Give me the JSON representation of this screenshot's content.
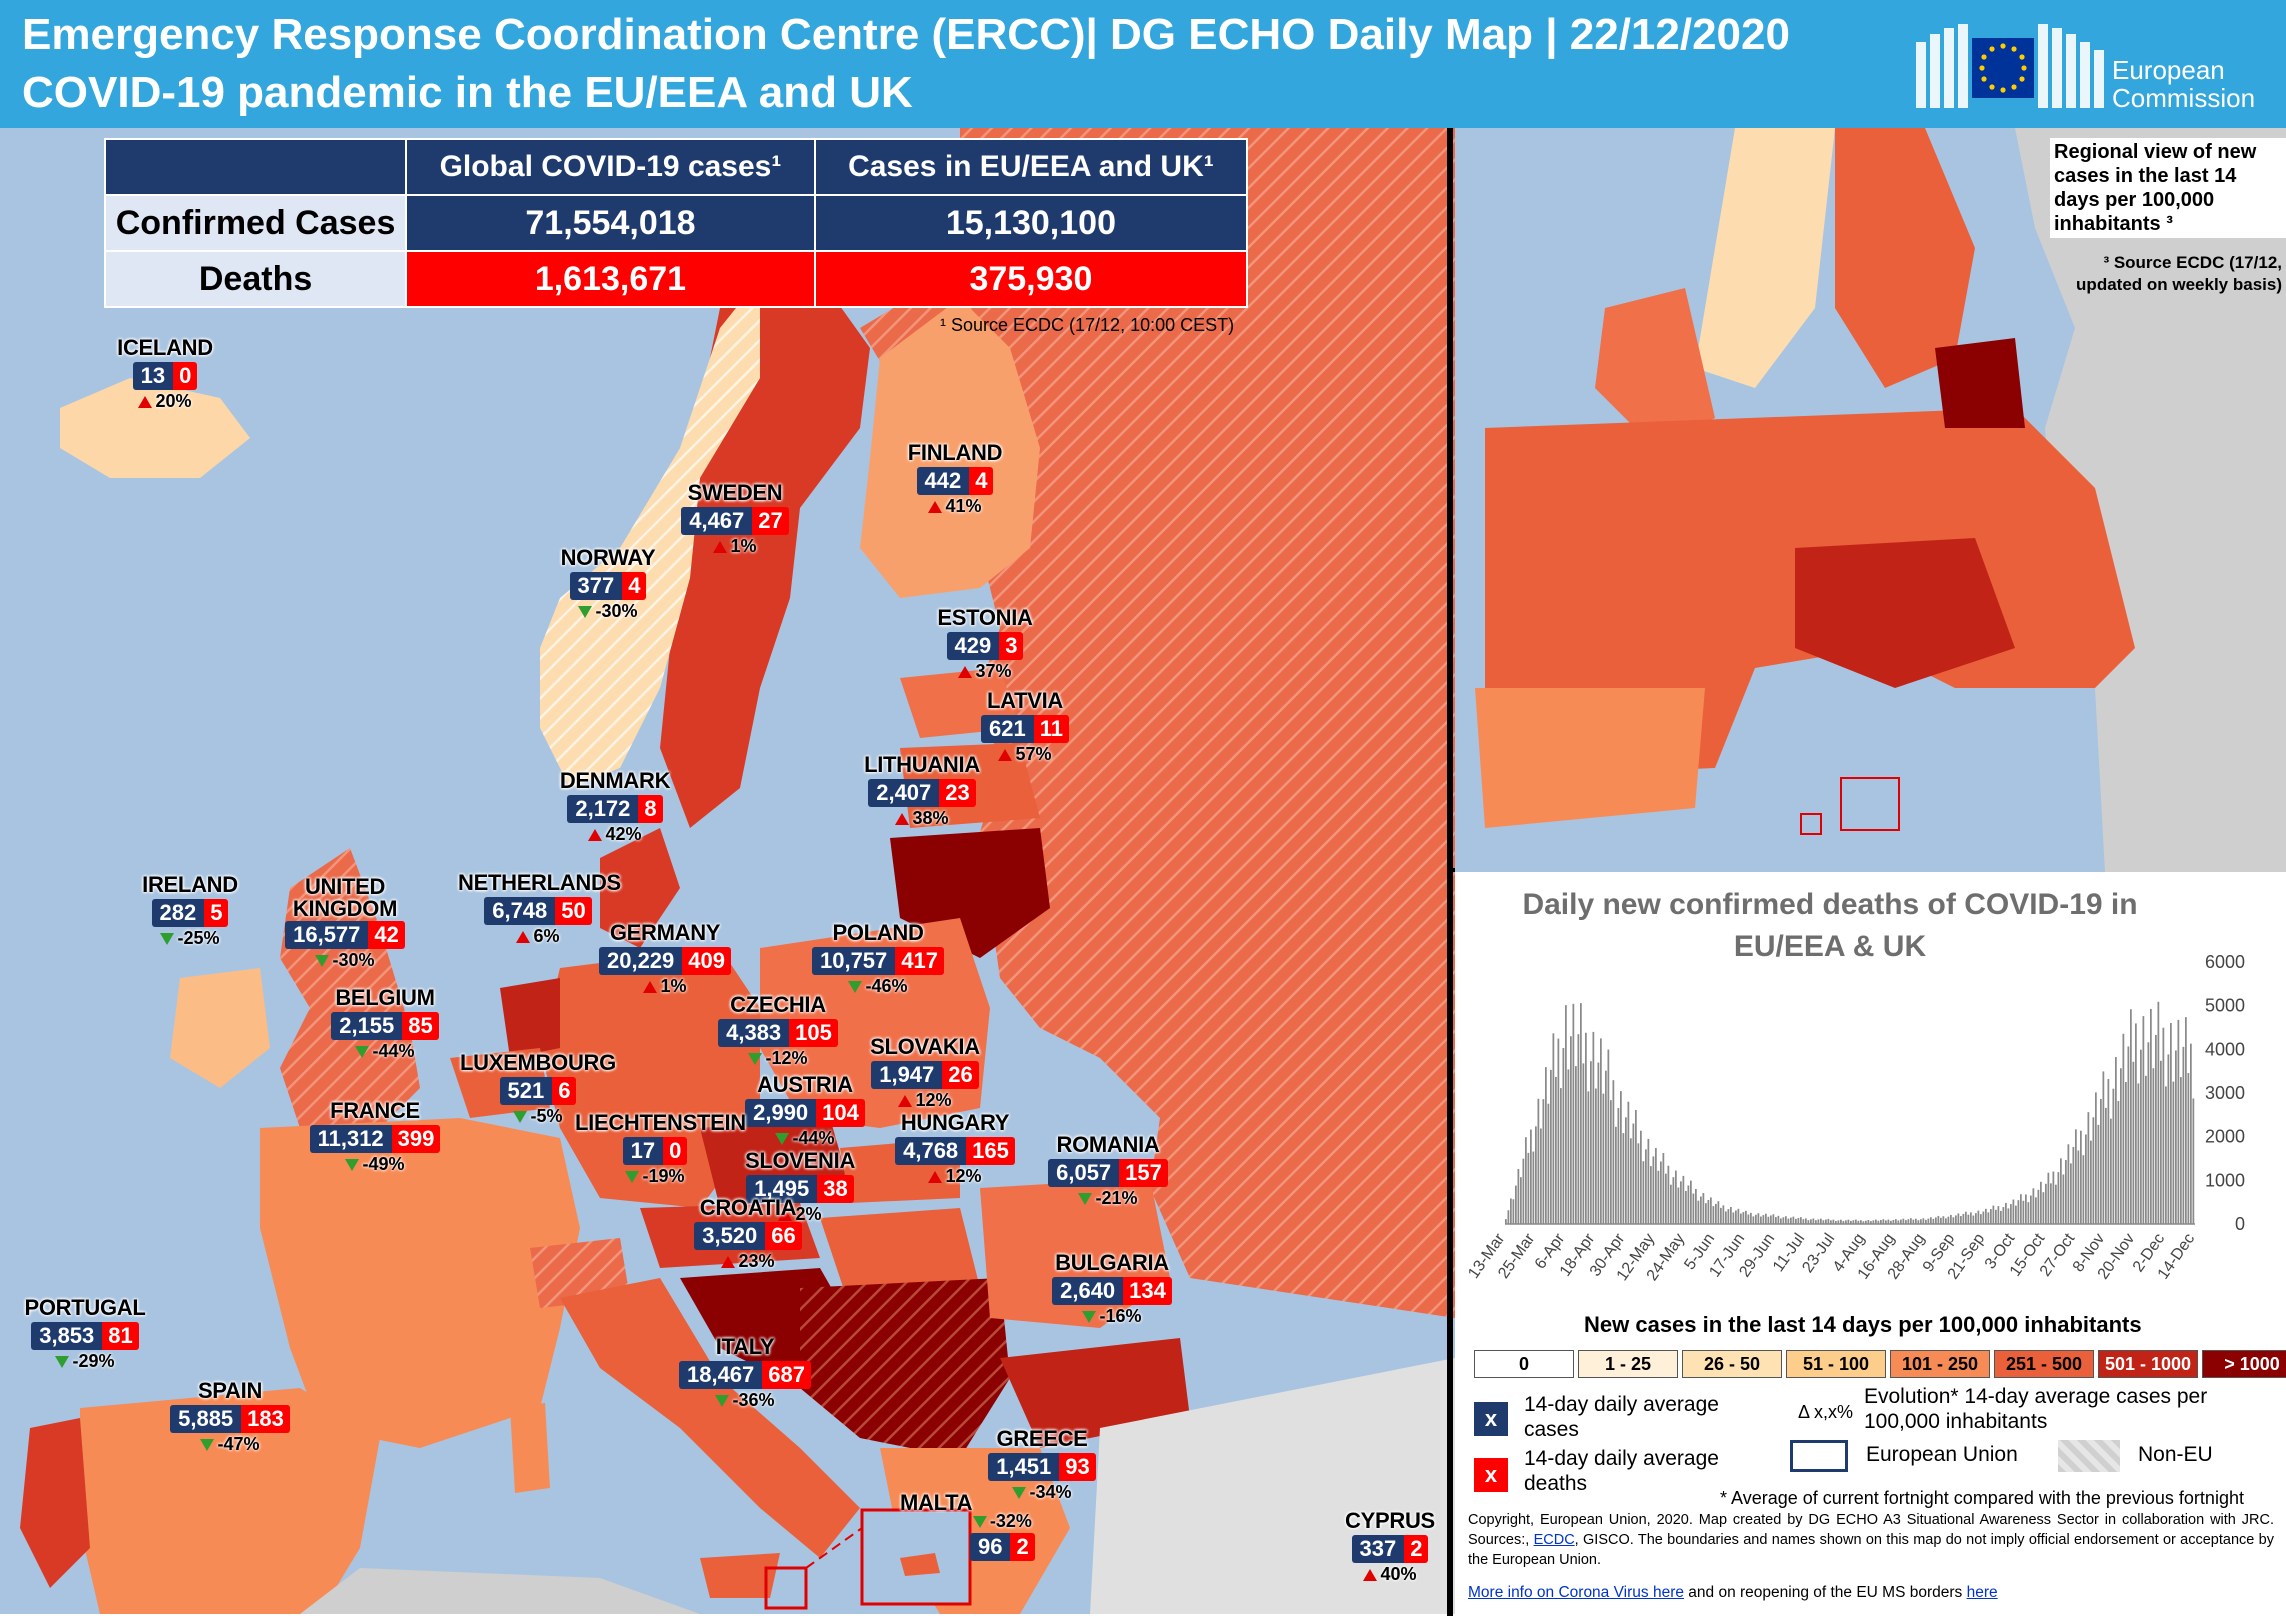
{
  "header": {
    "title_line1": "Emergency Response Coordination Centre (ERCC)| DG ECHO Daily Map | 22/12/2020",
    "title_line2": "COVID-19 pandemic in the EU/EEA and UK",
    "logo_text_line1": "European",
    "logo_text_line2": "Commission"
  },
  "colors": {
    "header_blue": "#33a7dd",
    "sea": "#a9c4e0",
    "case_blue": "#1f3b6e",
    "death_red": "#ff0000",
    "evo_up": "#e00000",
    "evo_down": "#2e9e2e"
  },
  "stats": {
    "col1_header": "Global COVID-19 cases¹",
    "col2_header": "Cases in EU/EEA and UK¹",
    "confirmed_label": "Confirmed Cases",
    "deaths_label": "Deaths",
    "global_confirmed": "71,554,018",
    "eu_confirmed": "15,130,100",
    "global_deaths": "1,613,671",
    "eu_deaths": "375,930",
    "source": "¹ Source ECDC  (17/12, 10:00 CEST)"
  },
  "countries": [
    {
      "name": "ICELAND",
      "cases": "13",
      "deaths": "0",
      "evo": "20%",
      "trend": "up"
    },
    {
      "name": "FINLAND",
      "cases": "442",
      "deaths": "4",
      "evo": "41%",
      "trend": "up"
    },
    {
      "name": "SWEDEN",
      "cases": "4,467",
      "deaths": "27",
      "evo": "1%",
      "trend": "up"
    },
    {
      "name": "NORWAY",
      "cases": "377",
      "deaths": "4",
      "evo": "-30%",
      "trend": "down"
    },
    {
      "name": "ESTONIA",
      "cases": "429",
      "deaths": "3",
      "evo": "37%",
      "trend": "up"
    },
    {
      "name": "LATVIA",
      "cases": "621",
      "deaths": "11",
      "evo": "57%",
      "trend": "up"
    },
    {
      "name": "LITHUANIA",
      "cases": "2,407",
      "deaths": "23",
      "evo": "38%",
      "trend": "up"
    },
    {
      "name": "DENMARK",
      "cases": "2,172",
      "deaths": "8",
      "evo": "42%",
      "trend": "up"
    },
    {
      "name": "IRELAND",
      "cases": "282",
      "deaths": "5",
      "evo": "-25%",
      "trend": "down"
    },
    {
      "name": "UNITED KINGDOM",
      "cases": "16,577",
      "deaths": "42",
      "evo": "-30%",
      "trend": "down"
    },
    {
      "name": "NETHERLANDS",
      "cases": "6,748",
      "deaths": "50",
      "evo": "6%",
      "trend": "up"
    },
    {
      "name": "GERMANY",
      "cases": "20,229",
      "deaths": "409",
      "evo": "1%",
      "trend": "up"
    },
    {
      "name": "POLAND",
      "cases": "10,757",
      "deaths": "417",
      "evo": "-46%",
      "trend": "down"
    },
    {
      "name": "BELGIUM",
      "cases": "2,155",
      "deaths": "85",
      "evo": "-44%",
      "trend": "down"
    },
    {
      "name": "CZECHIA",
      "cases": "4,383",
      "deaths": "105",
      "evo": "-12%",
      "trend": "down"
    },
    {
      "name": "SLOVAKIA",
      "cases": "1,947",
      "deaths": "26",
      "evo": "12%",
      "trend": "up"
    },
    {
      "name": "LUXEMBOURG",
      "cases": "521",
      "deaths": "6",
      "evo": "-5%",
      "trend": "down"
    },
    {
      "name": "AUSTRIA",
      "cases": "2,990",
      "deaths": "104",
      "evo": "-44%",
      "trend": "down"
    },
    {
      "name": "FRANCE",
      "cases": "11,312",
      "deaths": "399",
      "evo": "-49%",
      "trend": "down"
    },
    {
      "name": "LIECHTENSTEIN",
      "cases": "17",
      "deaths": "0",
      "evo": "-19%",
      "trend": "down"
    },
    {
      "name": "HUNGARY",
      "cases": "4,768",
      "deaths": "165",
      "evo": "12%",
      "trend": "up"
    },
    {
      "name": "ROMANIA",
      "cases": "6,057",
      "deaths": "157",
      "evo": "-21%",
      "trend": "down"
    },
    {
      "name": "SLOVENIA",
      "cases": "1,495",
      "deaths": "38",
      "evo": "2%",
      "trend": "up"
    },
    {
      "name": "CROATIA",
      "cases": "3,520",
      "deaths": "66",
      "evo": "23%",
      "trend": "up"
    },
    {
      "name": "BULGARIA",
      "cases": "2,640",
      "deaths": "134",
      "evo": "-16%",
      "trend": "down"
    },
    {
      "name": "PORTUGAL",
      "cases": "3,853",
      "deaths": "81",
      "evo": "-29%",
      "trend": "down"
    },
    {
      "name": "SPAIN",
      "cases": "5,885",
      "deaths": "183",
      "evo": "-47%",
      "trend": "down"
    },
    {
      "name": "ITALY",
      "cases": "18,467",
      "deaths": "687",
      "evo": "-36%",
      "trend": "down"
    },
    {
      "name": "GREECE",
      "cases": "1,451",
      "deaths": "93",
      "evo": "-34%",
      "trend": "down"
    },
    {
      "name": "CYPRUS",
      "cases": "337",
      "deaths": "2",
      "evo": "40%",
      "trend": "up"
    },
    {
      "name": "MALTA",
      "cases": "96",
      "deaths": "2",
      "evo": "-32%",
      "trend": "down"
    }
  ],
  "regional": {
    "note": "Regional view of new cases in the last 14 days per 100,000 inhabitants ³",
    "source": "³ Source ECDC (17/12, updated on weekly basis)"
  },
  "chart_data": {
    "type": "bar",
    "title": "Daily new confirmed deaths of COVID-19 in EU/EEA & UK",
    "categories": [
      "13-Mar",
      "25-Mar",
      "6-Apr",
      "18-Apr",
      "30-Apr",
      "12-May",
      "24-May",
      "5-Jun",
      "17-Jun",
      "29-Jun",
      "11-Jul",
      "23-Jul",
      "4-Aug",
      "16-Aug",
      "28-Aug",
      "9-Sep",
      "21-Sep",
      "3-Oct",
      "15-Oct",
      "27-Oct",
      "8-Nov",
      "20-Nov",
      "2-Dec",
      "14-Dec"
    ],
    "values": [
      150,
      2400,
      4500,
      3900,
      2500,
      1500,
      900,
      450,
      250,
      180,
      120,
      90,
      80,
      100,
      120,
      200,
      300,
      500,
      900,
      1800,
      3000,
      4300,
      4200,
      3800
    ],
    "ylim": [
      0,
      6000
    ],
    "yticks": [
      0,
      1000,
      2000,
      3000,
      4000,
      5000,
      6000
    ]
  },
  "legend": {
    "scale_title": "New cases in the last 14 days per 100,000 inhabitants",
    "scale": [
      {
        "label": "0",
        "color": "#ffffff"
      },
      {
        "label": "1 - 25",
        "color": "#fff1d9"
      },
      {
        "label": "26 - 50",
        "color": "#fee2b4"
      },
      {
        "label": "51 - 100",
        "color": "#fdcd8b"
      },
      {
        "label": "101 - 250",
        "color": "#f78b56"
      },
      {
        "label": "251 - 500",
        "color": "#e9603a"
      },
      {
        "label": "501 - 1000",
        "color": "#c22317"
      },
      {
        "label": "> 1000",
        "color": "#8b0000"
      }
    ],
    "case_symbol": "x",
    "death_symbol": "x",
    "case_label": "14-day daily average cases",
    "death_label": "14-day daily average deaths",
    "evo_symbol": "Δ x,x%",
    "evo_label": "Evolution* 14-day average cases per 100,000 inhabitants",
    "eu_label": "European Union",
    "noneu_label": "Non-EU",
    "footnote": "* Average of current fortnight compared with the previous fortnight",
    "copyright_part1": "Copyright, European Union, 2020. Map created by DG ECHO A3 Situational Awareness Sector in collaboration with JRC. Sources:, ",
    "copyright_link": "ECDC",
    "copyright_part2": ", GISCO. The boundaries and names shown on this map do not imply official endorsement or acceptance  by the European Union.",
    "more_info_link": "More info on Corona Virus here",
    "more_info_mid": " and on reopening of the EU MS borders ",
    "here_link": "here"
  }
}
